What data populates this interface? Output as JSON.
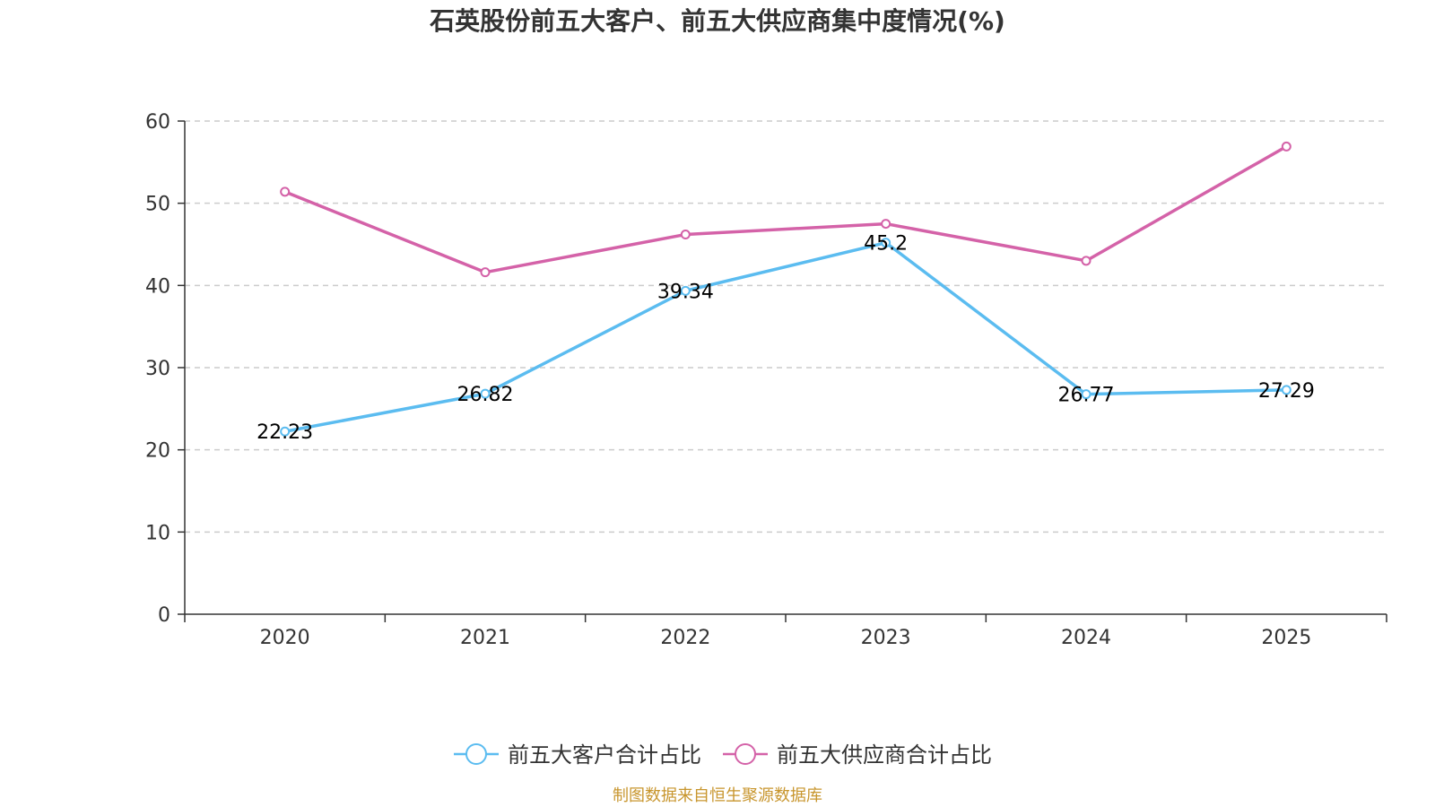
{
  "chart_data": {
    "type": "line",
    "title": "石英股份前五大客户、前五大供应商集中度情况(%)",
    "categories": [
      "2020",
      "2021",
      "2022",
      "2023",
      "2024",
      "2025"
    ],
    "ylim": [
      0,
      60
    ],
    "yticks": [
      0,
      10,
      20,
      30,
      40,
      50,
      60
    ],
    "grid": true,
    "legend_position": "bottom",
    "series": [
      {
        "name": "前五大客户合计占比",
        "color": "#5bbcf0",
        "values": [
          22.23,
          26.82,
          39.34,
          45.2,
          26.77,
          27.29
        ],
        "labels": [
          "22.23",
          "26.82",
          "39.34",
          "45.2",
          "26.77",
          "27.29"
        ],
        "show_labels": true
      },
      {
        "name": "前五大供应商合计占比",
        "color": "#d462a8",
        "values": [
          51.4,
          41.6,
          46.2,
          47.5,
          43.0,
          56.9
        ],
        "show_labels": false
      }
    ],
    "source": "制图数据来自恒生聚源数据库"
  }
}
